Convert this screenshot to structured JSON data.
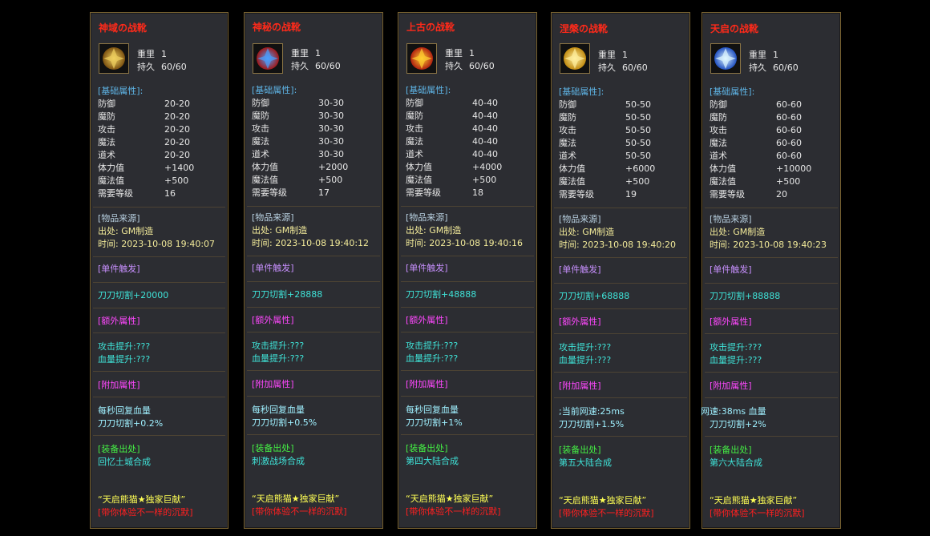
{
  "panels": [
    {
      "title": "神域の战靴",
      "weight_label": "重里",
      "weight": "1",
      "durability_label": "持久",
      "durability": "60/60",
      "base_header": "[基础属性]:",
      "stats": [
        [
          "防御",
          "20-20"
        ],
        [
          "魔防",
          "20-20"
        ],
        [
          "攻击",
          "20-20"
        ],
        [
          "魔法",
          "20-20"
        ],
        [
          "道术",
          "20-20"
        ],
        [
          "体力值",
          "+1400"
        ],
        [
          "魔法值",
          "+500"
        ],
        [
          "需要等级",
          "16"
        ]
      ],
      "source_header": "[物品来源]",
      "origin": "出处: GM制造",
      "time": "时间: 2023-10-08 19:40:07",
      "trigger_header": "[单件触发]",
      "trigger": "刀刀切割+20000",
      "extra_header": "[额外属性]",
      "extra": [
        "攻击提升:???",
        "血量提升:???"
      ],
      "add_header": "[附加属性]",
      "add": [
        "每秒回复血量",
        "刀刀切割+0.2%"
      ],
      "equip_header": "[装备出处]",
      "equip_location": "回忆土城合成",
      "quote": "“天启熊猫★独家巨献”",
      "slogan": "[带你体验不一样的沉默]"
    },
    {
      "title": "神秘の战靴",
      "weight_label": "重里",
      "weight": "1",
      "durability_label": "持久",
      "durability": "60/60",
      "base_header": "[基础属性]:",
      "stats": [
        [
          "防御",
          "30-30"
        ],
        [
          "魔防",
          "30-30"
        ],
        [
          "攻击",
          "30-30"
        ],
        [
          "魔法",
          "30-30"
        ],
        [
          "道术",
          "30-30"
        ],
        [
          "体力值",
          "+2000"
        ],
        [
          "魔法值",
          "+500"
        ],
        [
          "需要等级",
          "17"
        ]
      ],
      "source_header": "[物品来源]",
      "origin": "出处: GM制造",
      "time": "时间: 2023-10-08 19:40:12",
      "trigger_header": "[单件触发]",
      "trigger": "刀刀切割+28888",
      "extra_header": "[额外属性]",
      "extra": [
        "攻击提升:???",
        "血量提升:???"
      ],
      "add_header": "[附加属性]",
      "add": [
        "每秒回复血量",
        "刀刀切割+0.5%"
      ],
      "equip_header": "[装备出处]",
      "equip_location": "刺激战场合成",
      "quote": "“天启熊猫★独家巨献”",
      "slogan": "[带你体验不一样的沉默]"
    },
    {
      "title": "上古の战靴",
      "weight_label": "重里",
      "weight": "1",
      "durability_label": "持久",
      "durability": "60/60",
      "base_header": "[基础属性]:",
      "stats": [
        [
          "防御",
          "40-40"
        ],
        [
          "魔防",
          "40-40"
        ],
        [
          "攻击",
          "40-40"
        ],
        [
          "魔法",
          "40-40"
        ],
        [
          "道术",
          "40-40"
        ],
        [
          "体力值",
          "+4000"
        ],
        [
          "魔法值",
          "+500"
        ],
        [
          "需要等级",
          "18"
        ]
      ],
      "source_header": "[物品来源]",
      "origin": "出处: GM制造",
      "time": "时间: 2023-10-08 19:40:16",
      "trigger_header": "[单件触发]",
      "trigger": "刀刀切割+48888",
      "extra_header": "[额外属性]",
      "extra": [
        "攻击提升:???",
        "血量提升:???"
      ],
      "add_header": "[附加属性]",
      "add": [
        "每秒回复血量",
        "刀刀切割+1%"
      ],
      "equip_header": "[装备出处]",
      "equip_location": "第四大陆合成",
      "quote": "“天启熊猫★独家巨献”",
      "slogan": "[带你体验不一样的沉默]"
    },
    {
      "title": "涅槃の战靴",
      "weight_label": "重里",
      "weight": "1",
      "durability_label": "持久",
      "durability": "60/60",
      "base_header": "[基础属性]:",
      "stats": [
        [
          "防御",
          "50-50"
        ],
        [
          "魔防",
          "50-50"
        ],
        [
          "攻击",
          "50-50"
        ],
        [
          "魔法",
          "50-50"
        ],
        [
          "道术",
          "50-50"
        ],
        [
          "体力值",
          "+6000"
        ],
        [
          "魔法值",
          "+500"
        ],
        [
          "需要等级",
          "19"
        ]
      ],
      "source_header": "[物品来源]",
      "origin": "出处: GM制造",
      "time": "时间: 2023-10-08 19:40:20",
      "trigger_header": "[单件触发]",
      "trigger": "刀刀切割+68888",
      "extra_header": "[额外属性]",
      "extra": [
        "攻击提升:???",
        "血量提升:???"
      ],
      "add_header": "[附加属性]",
      "add": [
        ";当前网速:25ms",
        "刀刀切割+1.5%"
      ],
      "equip_header": "[装备出处]",
      "equip_location": "第五大陆合成",
      "quote": "“天启熊猫★独家巨献”",
      "slogan": "[带你体验不一样的沉默]"
    },
    {
      "title": "天启の战靴",
      "weight_label": "重里",
      "weight": "1",
      "durability_label": "持久",
      "durability": "60/60",
      "base_header": "[基础属性]:",
      "stats": [
        [
          "防御",
          "60-60"
        ],
        [
          "魔防",
          "60-60"
        ],
        [
          "攻击",
          "60-60"
        ],
        [
          "魔法",
          "60-60"
        ],
        [
          "道术",
          "60-60"
        ],
        [
          "体力值",
          "+10000"
        ],
        [
          "魔法值",
          "+500"
        ],
        [
          "需要等级",
          "20"
        ]
      ],
      "source_header": "[物品来源]",
      "origin": "出处: GM制造",
      "time": "时间: 2023-10-08 19:40:23",
      "trigger_header": "[单件触发]",
      "trigger": "刀刀切割+88888",
      "extra_header": "[额外属性]",
      "extra": [
        "攻击提升:???",
        "血量提升:???"
      ],
      "add_header": "[附加属性]",
      "add": [
        "网速:38ms 血量",
        "刀刀切割+2%"
      ],
      "equip_header": "[装备出处]",
      "equip_location": "第六大陆合成",
      "quote": "“天启熊猫★独家巨献”",
      "slogan": "[带你体验不一样的沉默]"
    }
  ]
}
